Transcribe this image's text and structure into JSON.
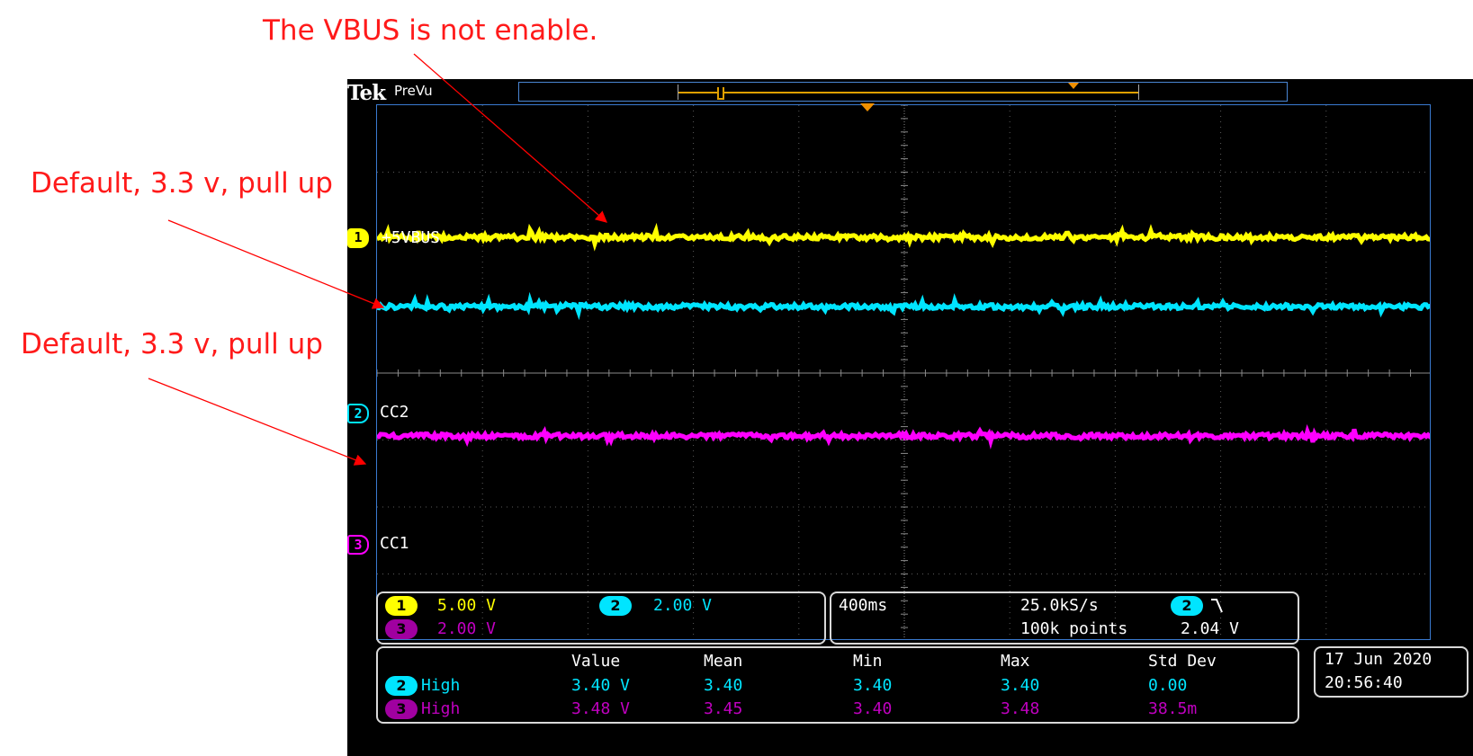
{
  "annotations": {
    "vbus_note": "The VBUS is not enable.",
    "cc2_note": "Default, 3.3 v, pull up",
    "cc1_note": "Default, 3.3 v, pull up"
  },
  "colors": {
    "annotation": "#ff1a1a",
    "ch1": "#ffff00",
    "ch2": "#00e5ff",
    "ch3": "#ff00ff",
    "grid": "#3a7ad0",
    "trigger": "#f09000"
  },
  "scope": {
    "brand": "Tek",
    "mode": "PreVu",
    "traces": [
      {
        "channel": "1",
        "label": "+5VBUS"
      },
      {
        "channel": "2",
        "label": "CC2"
      },
      {
        "channel": "3",
        "label": "CC1"
      }
    ],
    "vertical": {
      "ch1": {
        "channel": "1",
        "scale": "5.00 V"
      },
      "ch2": {
        "channel": "2",
        "scale": "2.00 V"
      },
      "ch3": {
        "channel": "3",
        "scale": "2.00 V"
      }
    },
    "horizontal": {
      "timebase": "400ms",
      "sample_rate": "25.0kS/s",
      "record_length": "100k points",
      "trigger_channel": "2",
      "trigger_slope_icon": "falling-edge-icon",
      "trigger_level": "2.04 V"
    },
    "measurements": {
      "headers": [
        "Value",
        "Mean",
        "Min",
        "Max",
        "Std Dev"
      ],
      "rows": [
        {
          "channel": "2",
          "label": "High",
          "value": "3.40 V",
          "mean": "3.40",
          "min": "3.40",
          "max": "3.40",
          "std_dev": "0.00"
        },
        {
          "channel": "3",
          "label": "High",
          "value": "3.48 V",
          "mean": "3.45",
          "min": "3.40",
          "max": "3.48",
          "std_dev": "38.5m"
        }
      ]
    },
    "datetime": {
      "date": "17 Jun  2020",
      "time": "20:56:40"
    }
  }
}
